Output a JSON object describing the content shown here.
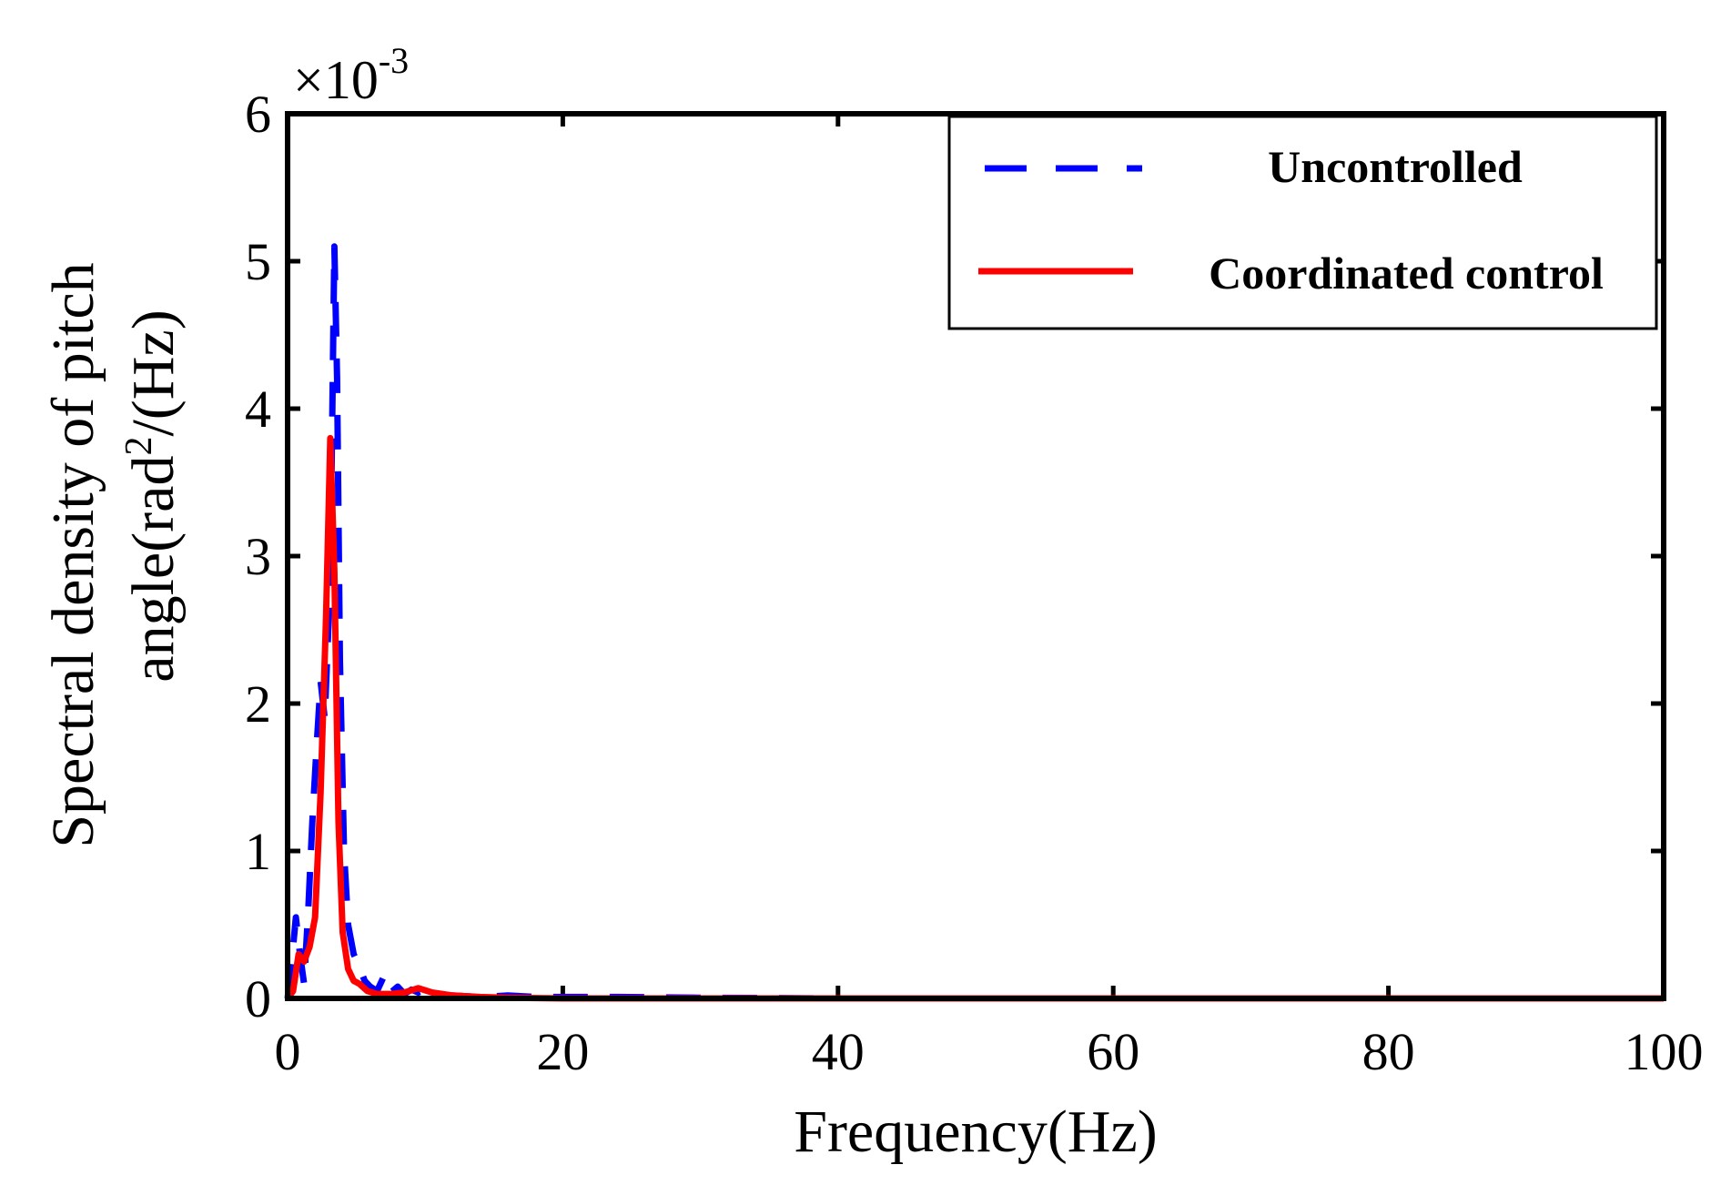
{
  "chart_data": {
    "type": "line",
    "title": "",
    "xlabel": "Frequency(Hz)",
    "ylabel_line1": "Spectral density of pitch",
    "ylabel_line2_prefix": "angle(rad",
    "ylabel_line2_sup": "2",
    "ylabel_line2_suffix": "/(Hz)",
    "xlim": [
      0,
      100
    ],
    "ylim": [
      0,
      6
    ],
    "xticks": [
      0,
      20,
      40,
      60,
      80,
      100
    ],
    "xtick_labels": [
      "0",
      "20",
      "40",
      "60",
      "80",
      "100"
    ],
    "yticks": [
      0,
      1,
      2,
      3,
      4,
      5,
      6
    ],
    "ytick_labels": [
      "0",
      "1",
      "2",
      "3",
      "4",
      "5",
      "6"
    ],
    "y_multiplier_base": "×10",
    "y_multiplier_exp": "-3",
    "grid": false,
    "legend_position": "top-right",
    "series": [
      {
        "name": "Uncontrolled",
        "color": "#0000ff",
        "style": "dashed",
        "x": [
          0,
          0.3,
          0.6,
          0.9,
          1.2,
          1.5,
          1.8,
          2.1,
          2.4,
          2.7,
          3.0,
          3.2,
          3.4,
          3.6,
          3.8,
          4.1,
          4.4,
          4.8,
          5.2,
          5.6,
          6.0,
          6.5,
          7.0,
          7.5,
          8.0,
          8.5,
          9.0,
          9.5,
          10.0,
          11.0,
          12.0,
          14.0,
          16.0,
          18.0,
          20.0,
          22.0,
          24.0,
          30.0,
          40.0,
          60.0,
          80.0,
          100.0
        ],
        "values": [
          0,
          0.25,
          0.55,
          0.3,
          0.1,
          0.6,
          1.2,
          1.7,
          2.15,
          1.9,
          2.6,
          3.6,
          5.1,
          4.2,
          2.3,
          1.0,
          0.5,
          0.3,
          0.22,
          0.12,
          0.08,
          0.05,
          0.15,
          0.04,
          0.08,
          0.03,
          0.06,
          0.04,
          0.06,
          0.03,
          0.02,
          0.01,
          0.02,
          0.01,
          0.01,
          0.01,
          0.01,
          0.005,
          0,
          0,
          0,
          0
        ]
      },
      {
        "name": "Coordinated control",
        "color": "#ff0000",
        "style": "solid",
        "x": [
          0,
          0.4,
          0.8,
          1.2,
          1.6,
          2.0,
          2.4,
          2.8,
          3.1,
          3.4,
          3.7,
          4.0,
          4.4,
          4.8,
          5.2,
          5.8,
          6.5,
          7.5,
          8.5,
          9.5,
          10.5,
          12.0,
          14.0,
          16.0,
          20.0,
          30.0,
          40.0,
          60.0,
          80.0,
          100.0
        ],
        "values": [
          0,
          0.05,
          0.3,
          0.25,
          0.35,
          0.55,
          1.4,
          2.6,
          3.8,
          2.9,
          1.2,
          0.45,
          0.2,
          0.12,
          0.1,
          0.05,
          0.03,
          0.03,
          0.04,
          0.07,
          0.04,
          0.02,
          0.01,
          0.005,
          0,
          0,
          0,
          0,
          0,
          0
        ]
      }
    ]
  }
}
